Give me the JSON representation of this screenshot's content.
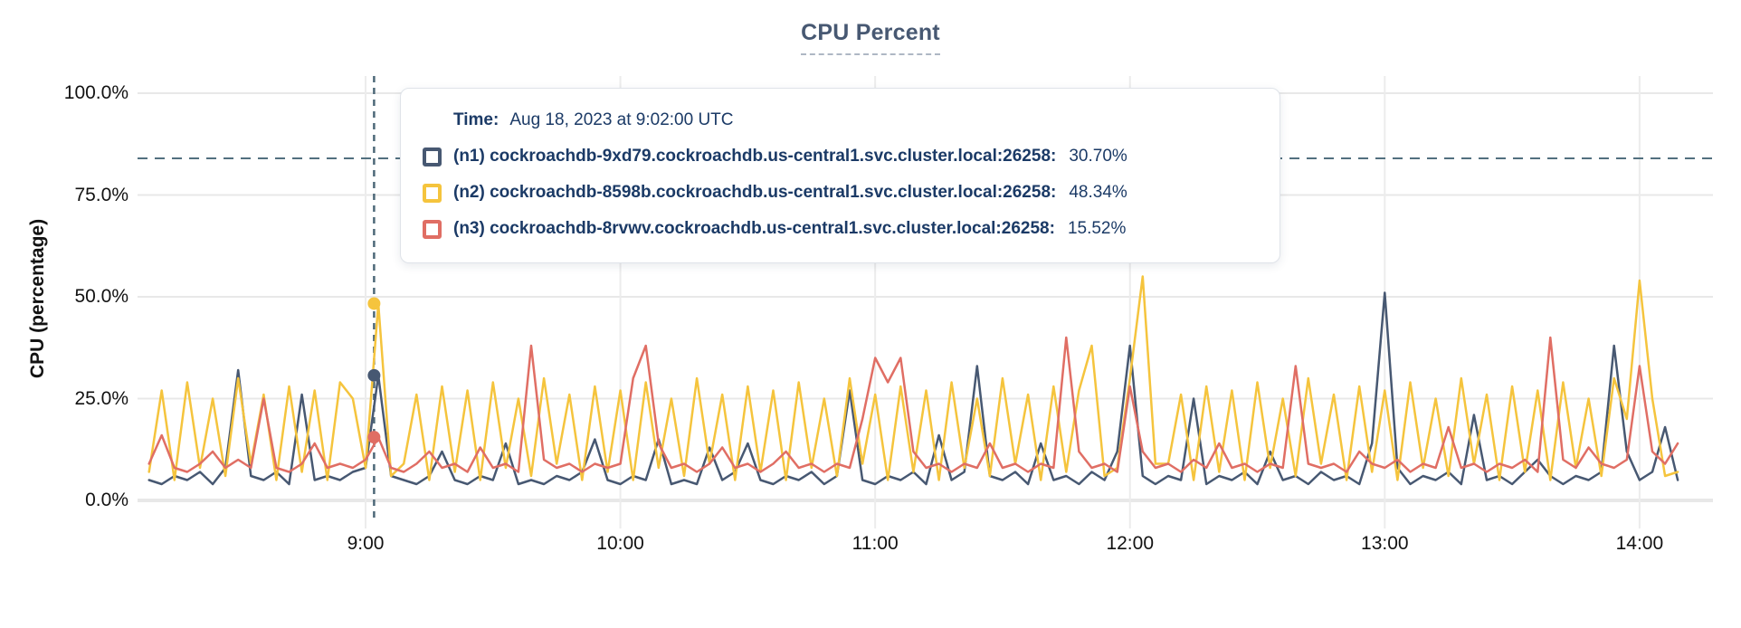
{
  "chart": {
    "title": "CPU Percent",
    "ylabel": "CPU (percentage)"
  },
  "tooltip": {
    "time_label": "Time:",
    "time_value": "Aug 18, 2023 at 9:02:00 UTC",
    "rows": [
      {
        "label": "(n1) cockroachdb-9xd79.cockroachdb.us-central1.svc.cluster.local:26258:",
        "value": "30.70%",
        "color": "#475872"
      },
      {
        "label": "(n2) cockroachdb-8598b.cockroachdb.us-central1.svc.cluster.local:26258:",
        "value": "48.34%",
        "color": "#f5c43d"
      },
      {
        "label": "(n3) cockroachdb-8rvwv.cockroachdb.us-central1.svc.cluster.local:26258:",
        "value": "15.52%",
        "color": "#e06e64"
      }
    ]
  },
  "colors": {
    "n1": "#475872",
    "n2": "#f5c43d",
    "n3": "#e06e64",
    "grid": "#e8e8e8",
    "crosshair": "#52707f",
    "title": "#475872",
    "tooltip_text": "#1b3a66"
  },
  "chart_data": {
    "type": "line",
    "title": "CPU Percent",
    "xlabel": "",
    "ylabel": "CPU (percentage)",
    "unit": "%",
    "ylim": [
      0,
      100
    ],
    "grid": true,
    "legend_position": "tooltip",
    "y_ticks": [
      {
        "value": 100,
        "label": "100.0%"
      },
      {
        "value": 75,
        "label": "75.0%"
      },
      {
        "value": 50,
        "label": "50.0%"
      },
      {
        "value": 25,
        "label": "25.0%"
      },
      {
        "value": 0,
        "label": "0.0%"
      }
    ],
    "x_ticks": [
      {
        "minute": 540,
        "label": "9:00"
      },
      {
        "minute": 600,
        "label": "10:00"
      },
      {
        "minute": 660,
        "label": "11:00"
      },
      {
        "minute": 720,
        "label": "12:00"
      },
      {
        "minute": 780,
        "label": "13:00"
      },
      {
        "minute": 840,
        "label": "14:00"
      }
    ],
    "x_start_time": "8:09",
    "x_end_time": "14:09",
    "start_minute": 489,
    "step_minutes": 3,
    "hover": {
      "time": "Aug 18, 2023 at 9:02:00 UTC",
      "minute": 542,
      "cursor_pct": 84
    },
    "series": [
      {
        "name": "(n1) cockroachdb-9xd79.cockroachdb.us-central1.svc.cluster.local:26258",
        "color": "#475872",
        "hover_value": 30.7,
        "values": [
          5,
          4,
          6,
          5,
          7,
          4,
          8,
          32,
          6,
          5,
          7,
          4,
          26,
          5,
          6,
          5,
          7,
          8,
          30.7,
          6,
          5,
          4,
          6,
          12,
          5,
          4,
          6,
          5,
          14,
          4,
          5,
          4,
          6,
          5,
          7,
          15,
          5,
          4,
          6,
          5,
          15,
          4,
          5,
          4,
          13,
          5,
          7,
          14,
          5,
          4,
          6,
          5,
          7,
          4,
          6,
          27,
          5,
          4,
          6,
          5,
          7,
          4,
          16,
          5,
          7,
          33,
          6,
          5,
          7,
          4,
          14,
          5,
          6,
          4,
          7,
          5,
          12,
          38,
          6,
          4,
          6,
          5,
          25,
          4,
          6,
          5,
          7,
          4,
          12,
          5,
          6,
          4,
          7,
          5,
          6,
          4,
          14,
          51,
          8,
          4,
          6,
          5,
          7,
          4,
          21,
          5,
          6,
          4,
          7,
          10,
          6,
          4,
          6,
          5,
          7,
          38,
          12,
          5,
          7,
          18,
          5
        ]
      },
      {
        "name": "(n2) cockroachdb-8598b.cockroachdb.us-central1.svc.cluster.local:26258",
        "color": "#f5c43d",
        "hover_value": 48.34,
        "values": [
          7,
          27,
          5,
          29,
          8,
          25,
          6,
          30,
          9,
          26,
          5,
          28,
          7,
          27,
          5,
          29,
          25,
          8,
          48.3,
          6,
          9,
          26,
          5,
          28,
          7,
          27,
          5,
          29,
          8,
          25,
          6,
          30,
          9,
          26,
          5,
          28,
          7,
          27,
          5,
          29,
          8,
          25,
          6,
          30,
          9,
          26,
          5,
          28,
          7,
          27,
          5,
          29,
          8,
          25,
          6,
          30,
          9,
          26,
          5,
          28,
          7,
          27,
          5,
          29,
          8,
          25,
          6,
          30,
          9,
          26,
          5,
          28,
          7,
          27,
          38,
          6,
          8,
          30,
          55,
          9,
          9,
          26,
          5,
          28,
          7,
          27,
          5,
          29,
          8,
          25,
          6,
          30,
          9,
          26,
          5,
          28,
          7,
          27,
          5,
          29,
          8,
          25,
          6,
          30,
          9,
          26,
          5,
          28,
          7,
          27,
          5,
          29,
          8,
          25,
          6,
          30,
          20,
          54,
          25,
          6,
          7
        ]
      },
      {
        "name": "(n3) cockroachdb-8rvwv.cockroachdb.us-central1.svc.cluster.local:26258",
        "color": "#e06e64",
        "hover_value": 15.52,
        "values": [
          9,
          16,
          8,
          7,
          9,
          12,
          8,
          10,
          8,
          25,
          8,
          7,
          9,
          14,
          8,
          9,
          8,
          10,
          15.5,
          8,
          7,
          9,
          12,
          8,
          9,
          7,
          13,
          8,
          9,
          7,
          38,
          10,
          8,
          9,
          7,
          9,
          8,
          9,
          30,
          38,
          14,
          8,
          9,
          7,
          9,
          13,
          8,
          9,
          7,
          9,
          12,
          8,
          9,
          7,
          9,
          8,
          20,
          35,
          29,
          35,
          12,
          8,
          9,
          7,
          9,
          8,
          14,
          8,
          9,
          7,
          9,
          8,
          40,
          12,
          8,
          9,
          7,
          28,
          12,
          8,
          9,
          7,
          10,
          8,
          14,
          8,
          9,
          7,
          9,
          8,
          33,
          9,
          8,
          9,
          7,
          12,
          9,
          8,
          10,
          7,
          9,
          8,
          18,
          8,
          9,
          7,
          9,
          8,
          10,
          7,
          40,
          10,
          8,
          13,
          9,
          8,
          10,
          33,
          12,
          9,
          14
        ]
      }
    ]
  }
}
